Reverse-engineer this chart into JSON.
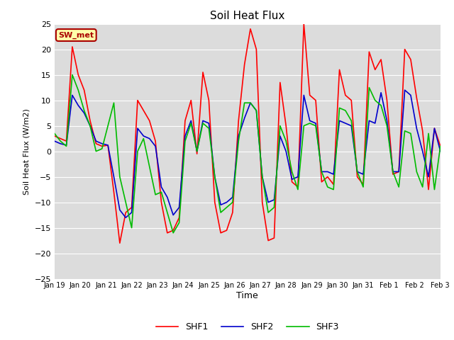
{
  "title": "Soil Heat Flux",
  "xlabel": "Time",
  "ylabel": "Soil Heat Flux (W/m2)",
  "ylim": [
    -25,
    25
  ],
  "yticks": [
    -25,
    -20,
    -15,
    -10,
    -5,
    0,
    5,
    10,
    15,
    20,
    25
  ],
  "xtick_labels": [
    "Jan 19",
    "Jan 20",
    "Jan 21",
    "Jan 22",
    "Jan 23",
    "Jan 24",
    "Jan 25",
    "Jan 26",
    "Jan 27",
    "Jan 28",
    "Jan 29",
    "Jan 30",
    "Jan 31",
    "Feb 1",
    "Feb 2",
    "Feb 3"
  ],
  "colors": {
    "SHF1": "#ff0000",
    "SHF2": "#0000cc",
    "SHF3": "#00bb00"
  },
  "bg_color": "#dcdcdc",
  "fig_bg_color": "#ffffff",
  "grid_color": "#ffffff",
  "annotation_box": {
    "text": "SW_met",
    "facecolor": "#ffffaa",
    "edgecolor": "#aa0000",
    "textcolor": "#aa0000"
  },
  "SHF1": [
    3.0,
    2.5,
    2.0,
    20.5,
    15.0,
    12.0,
    6.0,
    1.5,
    1.0,
    1.2,
    -8.0,
    -18.0,
    -12.0,
    -11.0,
    10.0,
    8.0,
    6.0,
    2.0,
    -10.0,
    -16.0,
    -15.5,
    -13.0,
    6.0,
    10.0,
    -0.5,
    15.5,
    10.0,
    -10.0,
    -16.0,
    -15.5,
    -12.0,
    6.0,
    17.0,
    24.0,
    20.0,
    -10.0,
    -17.5,
    -17.0,
    13.5,
    5.0,
    -6.0,
    -7.0,
    25.0,
    11.0,
    10.0,
    -6.0,
    -5.0,
    -6.5,
    16.0,
    11.0,
    10.0,
    -5.0,
    -6.5,
    19.5,
    16.0,
    18.0,
    10.0,
    -4.5,
    -4.0,
    20.0,
    18.0,
    10.5,
    4.0,
    -7.5,
    4.5,
    1.0
  ],
  "SHF2": [
    2.0,
    1.5,
    1.2,
    11.0,
    9.0,
    7.5,
    5.0,
    2.0,
    1.5,
    1.2,
    -5.0,
    -11.5,
    -13.0,
    -12.0,
    4.5,
    3.0,
    2.5,
    1.0,
    -7.0,
    -9.0,
    -12.5,
    -11.0,
    3.0,
    6.0,
    0.0,
    6.0,
    5.5,
    -5.0,
    -10.5,
    -10.0,
    -9.0,
    3.0,
    6.5,
    9.5,
    8.0,
    -5.0,
    -10.0,
    -9.5,
    3.0,
    0.0,
    -5.5,
    -5.0,
    11.0,
    6.0,
    5.5,
    -4.0,
    -4.0,
    -4.5,
    6.0,
    5.5,
    5.0,
    -4.0,
    -4.5,
    6.0,
    5.5,
    11.5,
    6.0,
    -4.0,
    -4.0,
    12.0,
    11.0,
    4.5,
    0.0,
    -5.0,
    4.5,
    0.0
  ],
  "SHF3": [
    3.5,
    2.0,
    1.0,
    15.0,
    12.0,
    8.0,
    5.0,
    0.0,
    0.5,
    5.0,
    9.5,
    -5.0,
    -10.0,
    -15.0,
    0.0,
    2.5,
    -3.0,
    -8.5,
    -8.0,
    -12.0,
    -16.0,
    -14.0,
    2.0,
    5.5,
    0.0,
    5.5,
    4.5,
    -5.0,
    -12.0,
    -11.0,
    -10.0,
    2.0,
    9.5,
    9.5,
    8.0,
    -5.0,
    -12.0,
    -11.0,
    5.0,
    2.0,
    -4.0,
    -7.5,
    5.0,
    5.5,
    5.0,
    -4.0,
    -7.0,
    -7.5,
    8.5,
    8.0,
    6.0,
    -4.0,
    -7.0,
    12.5,
    10.0,
    9.0,
    5.0,
    -4.0,
    -7.0,
    4.0,
    3.5,
    -4.0,
    -7.0,
    3.5,
    -7.5,
    1.0
  ],
  "line_width": 1.2
}
